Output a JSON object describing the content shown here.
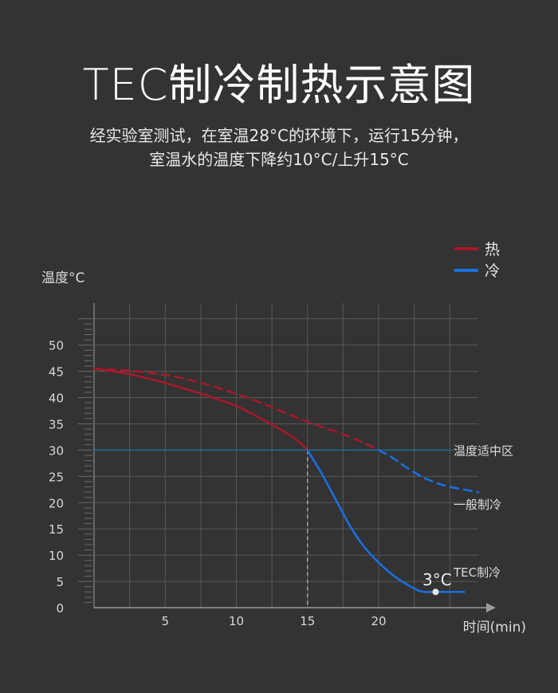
{
  "title": "TEC制冷制热示意图",
  "subtitle_lines": [
    "经实验室测试，在室温28°C的环境下，运行15分钟，",
    "室温水的温度下降约10°C/上升15°C"
  ],
  "chart_data": {
    "type": "line",
    "ylabel": "温度°C",
    "xlabel": "时间(min)",
    "x_ticks": [
      5,
      10,
      15,
      20
    ],
    "y_ticks": [
      0,
      5,
      10,
      15,
      20,
      25,
      30,
      35,
      40,
      45,
      50
    ],
    "xlim": [
      0,
      27
    ],
    "ylim": [
      0,
      58
    ],
    "grid": true,
    "legend_position": "top-right",
    "legend": [
      {
        "label": "热",
        "color": "#a8182b"
      },
      {
        "label": "冷",
        "color": "#1a6fe0"
      }
    ],
    "series": [
      {
        "name": "热",
        "color": "#a8182b",
        "style": "solid",
        "x": [
          0,
          2,
          4,
          6,
          8,
          10,
          12,
          14,
          15
        ],
        "y": [
          45.5,
          44.7,
          43.5,
          42.0,
          40.3,
          38.4,
          35.6,
          32.4,
          30.0
        ]
      },
      {
        "name": "冷",
        "color": "#1a6fe0",
        "style": "solid",
        "x": [
          15,
          16,
          17,
          18,
          19,
          20,
          21,
          22,
          23,
          24,
          25,
          26
        ],
        "y": [
          30.0,
          25.5,
          20.5,
          15.5,
          11.5,
          8.6,
          6.2,
          4.4,
          3.1,
          3.0,
          3.0,
          3.0
        ]
      },
      {
        "name": "热",
        "color": "#a8182b",
        "style": "dashed",
        "x": [
          0,
          3,
          6,
          9,
          12,
          15,
          18,
          20
        ],
        "y": [
          45.5,
          45.0,
          43.8,
          41.6,
          38.7,
          35.4,
          32.5,
          30.0
        ]
      },
      {
        "name": "冷",
        "color": "#1a6fe0",
        "style": "dashed",
        "x": [
          20,
          21,
          22,
          23,
          24,
          25,
          27
        ],
        "y": [
          30.0,
          28.5,
          26.6,
          25.0,
          23.8,
          23.0,
          22.0
        ]
      }
    ],
    "reference_lines": [
      {
        "y": 30,
        "label": "温度适中区",
        "color": "#1e6e93"
      }
    ],
    "guide_line": {
      "x": 15,
      "style": "dashed"
    },
    "annotations": [
      {
        "text": "一般制冷",
        "x": 26.8,
        "y": 20
      },
      {
        "text": "TEC制冷",
        "x": 26.8,
        "y": 6.5
      },
      {
        "text": "3°C",
        "x": 24,
        "y": 3
      }
    ]
  }
}
